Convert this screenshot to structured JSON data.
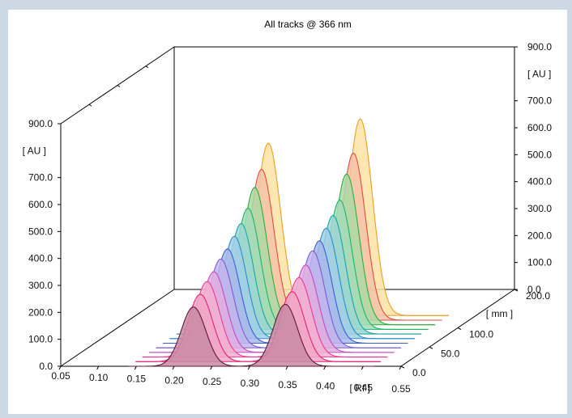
{
  "colors": {
    "page_background": "#ccd8e3",
    "plot_background": "#ffffff",
    "axis": "#000000"
  },
  "chart_data": {
    "type": "area",
    "title": "All tracks @ 366 nm",
    "x_axis": {
      "label": "[ Rf ]",
      "ticks": [
        "0.05",
        "0.10",
        "0.15",
        "0.20",
        "0.25",
        "0.30",
        "0.35",
        "0.40",
        "0.45",
        "0.55"
      ],
      "range": [
        0.05,
        0.55
      ]
    },
    "y_axis_left": {
      "label": "[ AU ]",
      "ticks": [
        "0.0",
        "100.0",
        "200.0",
        "300.0",
        "400.0",
        "500.0",
        "600.0",
        "700.0",
        "900.0"
      ],
      "range": [
        0,
        900
      ]
    },
    "y_axis_right": {
      "label": "[ AU ]",
      "ticks": [
        "0.0",
        "100.0",
        "200.0",
        "300.0",
        "400.0",
        "500.0",
        "600.0",
        "700.0",
        "900.0"
      ],
      "range": [
        0,
        900
      ]
    },
    "depth_axis": {
      "label": "[ mm ]",
      "ticks": [
        "0.0",
        "50.0",
        "100.0",
        "200.0"
      ],
      "range": [
        0,
        200
      ]
    },
    "grid": false,
    "legend": "none",
    "peak_positions_rf": [
      0.245,
      0.38
    ],
    "peak_width_rf": 0.018,
    "tracks": [
      {
        "depth_mm": 0,
        "peak_heights": [
          220,
          230
        ],
        "line_color": "#5c1a3a",
        "fill_color": "#c98aa4"
      },
      {
        "depth_mm": 12,
        "peak_heights": [
          250,
          260
        ],
        "line_color": "#e02575",
        "fill_color": "#f2a6c6"
      },
      {
        "depth_mm": 24,
        "peak_heights": [
          280,
          295
        ],
        "line_color": "#e83b93",
        "fill_color": "#f4b0d0"
      },
      {
        "depth_mm": 36,
        "peak_heights": [
          300,
          325
        ],
        "line_color": "#c24cc0",
        "fill_color": "#e2aee0"
      },
      {
        "depth_mm": 48,
        "peak_heights": [
          330,
          360
        ],
        "line_color": "#7b5cd6",
        "fill_color": "#c2b5ec"
      },
      {
        "depth_mm": 60,
        "peak_heights": [
          350,
          380
        ],
        "line_color": "#3b5fd0",
        "fill_color": "#a9b9ea"
      },
      {
        "depth_mm": 72,
        "peak_heights": [
          380,
          410
        ],
        "line_color": "#2a8ec9",
        "fill_color": "#a2cfe6"
      },
      {
        "depth_mm": 84,
        "peak_heights": [
          410,
          440
        ],
        "line_color": "#1aa5a5",
        "fill_color": "#9cd6d2"
      },
      {
        "depth_mm": 96,
        "peak_heights": [
          450,
          480
        ],
        "line_color": "#1db36a",
        "fill_color": "#a4dcb9"
      },
      {
        "depth_mm": 108,
        "peak_heights": [
          510,
          560
        ],
        "line_color": "#2fae3f",
        "fill_color": "#acd9a7"
      },
      {
        "depth_mm": 120,
        "peak_heights": [
          560,
          620
        ],
        "line_color": "#e24b3b",
        "fill_color": "#f5c2a8"
      },
      {
        "depth_mm": 132,
        "peak_heights": [
          640,
          730
        ],
        "line_color": "#e8a020",
        "fill_color": "#fbe3a6"
      }
    ]
  }
}
